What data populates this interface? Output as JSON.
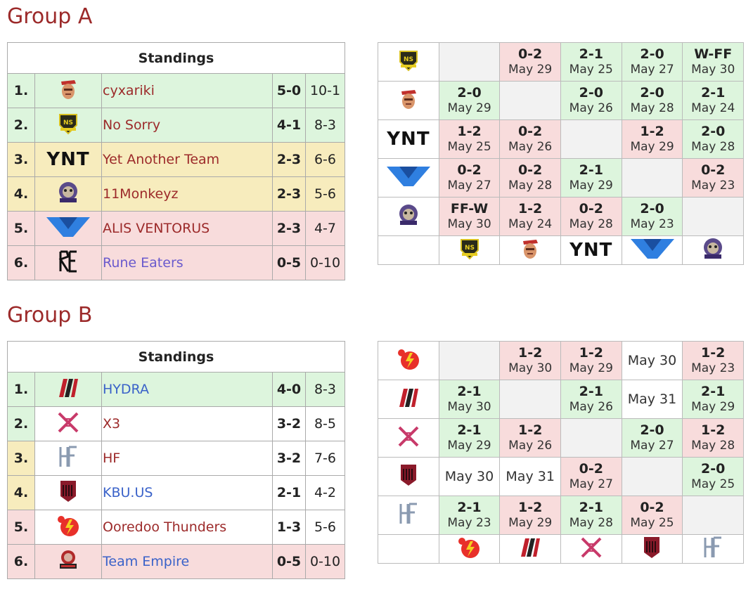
{
  "groupA": {
    "title": "Group A",
    "standings_header": "Standings",
    "teams": [
      {
        "rank": "1.",
        "name": "cyxariki",
        "score": "5-0",
        "games": "10-1",
        "row": "g",
        "name_color": "red",
        "logo": "cyxariki-logo-icon"
      },
      {
        "rank": "2.",
        "name": "No Sorry",
        "score": "4-1",
        "games": "8-3",
        "row": "g",
        "name_color": "red",
        "logo": "no-sorry-logo-icon"
      },
      {
        "rank": "3.",
        "name": "Yet Another Team",
        "score": "2-3",
        "games": "6-6",
        "row": "y",
        "name_color": "red",
        "logo": "ynt-logo-icon"
      },
      {
        "rank": "4.",
        "name": "11Monkeyz",
        "score": "2-3",
        "games": "5-6",
        "row": "y",
        "name_color": "red",
        "logo": "monkeyz-logo-icon"
      },
      {
        "rank": "5.",
        "name": "ALIS VENTORUS",
        "score": "2-3",
        "games": "4-7",
        "row": "r",
        "name_color": "red",
        "logo": "alis-ventorus-logo-icon"
      },
      {
        "rank": "6.",
        "name": "Rune Eaters",
        "score": "0-5",
        "games": "0-10",
        "row": "r",
        "name_color": "purple",
        "logo": "rune-eaters-logo-icon"
      }
    ],
    "matrix": [
      [
        "",
        "0-2|May 29|r",
        "2-1|May 25|g",
        "2-0|May 27|g",
        "W-FF|May 30|g"
      ],
      [
        "2-0|May 29|g",
        "",
        "2-0|May 26|g",
        "2-0|May 28|g",
        "2-1|May 24|g"
      ],
      [
        "1-2|May 25|r",
        "0-2|May 26|r",
        "",
        "1-2|May 29|r",
        "2-0|May 28|g"
      ],
      [
        "0-2|May 27|r",
        "0-2|May 28|r",
        "2-1|May 29|g",
        "",
        "0-2|May 23|r"
      ],
      [
        "FF-W|May 30|r",
        "1-2|May 24|r",
        "0-2|May 28|r",
        "2-0|May 23|g",
        ""
      ]
    ],
    "ynt_text": "YNT"
  },
  "groupB": {
    "title": "Group B",
    "standings_header": "Standings",
    "teams": [
      {
        "rank": "1.",
        "name": "HYDRA",
        "score": "4-0",
        "games": "8-3",
        "row": "g",
        "name_color": "blue",
        "logo": "hydra-logo-icon"
      },
      {
        "rank": "2.",
        "name": "X3",
        "score": "3-2",
        "games": "8-5",
        "row": "g",
        "name_color": "red",
        "logo": "x3-logo-icon"
      },
      {
        "rank": "3.",
        "name": "HF",
        "score": "3-2",
        "games": "7-6",
        "row": "y",
        "name_color": "red",
        "logo": "hf-logo-icon"
      },
      {
        "rank": "4.",
        "name": "KBU.US",
        "score": "2-1",
        "games": "4-2",
        "row": "y",
        "name_color": "blue",
        "logo": "kbu-logo-icon"
      },
      {
        "rank": "5.",
        "name": "Ooredoo Thunders",
        "score": "1-3",
        "games": "5-6",
        "row": "r",
        "name_color": "red",
        "logo": "ooredoo-logo-icon"
      },
      {
        "rank": "6.",
        "name": "Team Empire",
        "score": "0-5",
        "games": "0-10",
        "row": "r",
        "name_color": "blue",
        "logo": "empire-logo-icon"
      }
    ],
    "matrix": [
      [
        "",
        "1-2|May 30|r",
        "1-2|May 29|r",
        "|May 30|w",
        "1-2|May 23|r"
      ],
      [
        "2-1|May 30|g",
        "",
        "2-1|May 26|g",
        "|May 31|w",
        "2-1|May 29|g"
      ],
      [
        "2-1|May 29|g",
        "1-2|May 26|r",
        "",
        "2-0|May 27|g",
        "1-2|May 28|r"
      ],
      [
        "|May 30|w",
        "|May 31|w",
        "0-2|May 27|r",
        "",
        "2-0|May 25|g"
      ],
      [
        "2-1|May 23|g",
        "1-2|May 29|r",
        "2-1|May 28|g",
        "0-2|May 25|r",
        ""
      ]
    ]
  },
  "colors": {
    "win": "#ddf5dd",
    "mid": "#f7ecbd",
    "loss": "#f8dcdc",
    "title": "#9c2a2a",
    "link_blue": "#3a62c9"
  }
}
